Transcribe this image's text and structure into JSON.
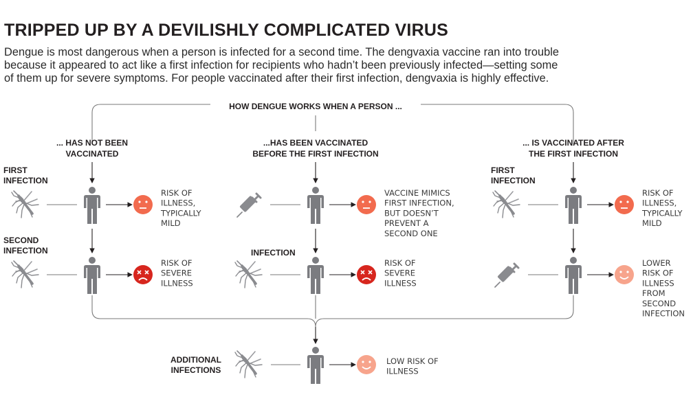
{
  "title": "TRIPPED UP BY A DEVILISHLY COMPLICATED VIRUS",
  "intro_lines": [
    "Dengue is most dangerous when a person is infected for a second time. The dengvaxia vaccine ran into trouble",
    "because it appeared to act like a first infection for recipients who hadn’t been previously infected—setting some",
    "of them up for severe symptoms. For people vaccinated after their first infection, dengvaxia is highly effective."
  ],
  "header": "HOW DENGUE WORKS WHEN A PERSON ...",
  "columns": [
    {
      "heading": [
        "... HAS NOT BEEN",
        "VACCINATED"
      ],
      "row1": {
        "label": [
          "FIRST",
          "INFECTION"
        ],
        "icon": "mosquito-icon",
        "face": "neutral-face-icon",
        "outcome": [
          "RISK OF",
          "ILLNESS,",
          "TYPICALLY",
          "MILD"
        ]
      },
      "row2": {
        "label": [
          "SECOND",
          "INFECTION"
        ],
        "icon": "mosquito-icon",
        "face": "sad-face-icon",
        "outcome": [
          "RISK OF",
          "SEVERE",
          "ILLNESS"
        ]
      }
    },
    {
      "heading": [
        "...HAS BEEN VACCINATED",
        "BEFORE THE FIRST INFECTION"
      ],
      "row1": {
        "label": [],
        "icon": "syringe-icon",
        "face": "neutral-face-icon",
        "outcome": [
          "VACCINE MIMICS",
          "FIRST INFECTION,",
          "BUT DOESN’T",
          "PREVENT A",
          "SECOND ONE"
        ]
      },
      "row2": {
        "label": [
          "INFECTION"
        ],
        "icon": "mosquito-icon",
        "face": "sad-face-icon",
        "outcome": [
          "RISK OF",
          "SEVERE",
          "ILLNESS"
        ]
      }
    },
    {
      "heading": [
        "... IS VACCINATED AFTER",
        "THE FIRST INFECTION"
      ],
      "row1": {
        "label": [
          "FIRST",
          "INFECTION"
        ],
        "icon": "mosquito-icon",
        "face": "neutral-face-icon",
        "outcome": [
          "RISK OF",
          "ILLNESS,",
          "TYPICALLY",
          "MILD"
        ]
      },
      "row2": {
        "label": [],
        "icon": "syringe-icon",
        "face": "happy-face-icon",
        "outcome": [
          "LOWER",
          "RISK OF",
          "ILLNESS",
          "FROM",
          "SECOND",
          "INFECTION"
        ]
      }
    }
  ],
  "final": {
    "label": [
      "ADDITIONAL",
      "INFECTIONS"
    ],
    "icon": "mosquito-icon",
    "face": "happy-face-icon",
    "outcome": [
      "LOW RISK OF",
      "ILLNESS"
    ]
  },
  "colors": {
    "text": "#231f20",
    "line": "#7a7a7a",
    "person": "#7b7c80",
    "icon": "#8a8b8f",
    "neutral_face": "#f26b4e",
    "sad_face": "#d7261e",
    "happy_face": "#f7a48c"
  }
}
